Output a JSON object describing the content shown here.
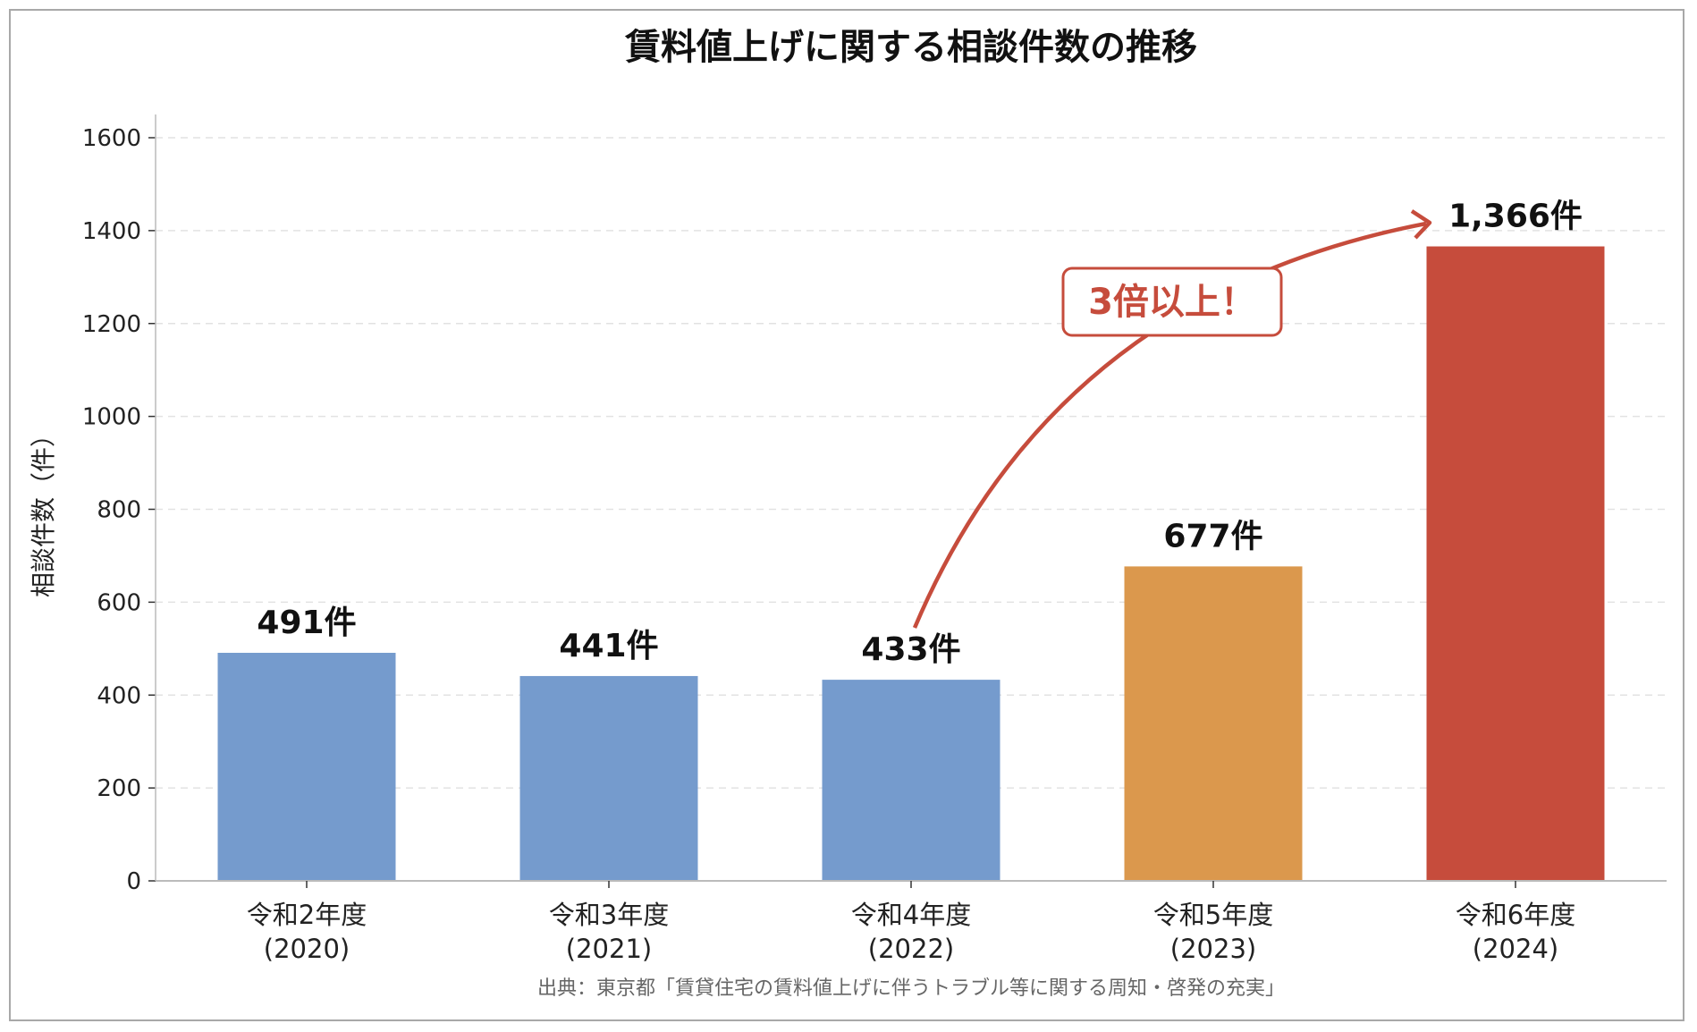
{
  "chart_data": {
    "type": "bar",
    "title": "賃料値上げに関する相談件数の推移",
    "ylabel": "相談件数（件）",
    "xlabel": "",
    "ylim": [
      0,
      1650
    ],
    "yticks": [
      0,
      200,
      400,
      600,
      800,
      1000,
      1200,
      1400,
      1600
    ],
    "grid": "horizontal dashed",
    "categories": [
      [
        "令和2年度",
        "(2020)"
      ],
      [
        "令和3年度",
        "(2021)"
      ],
      [
        "令和4年度",
        "(2022)"
      ],
      [
        "令和5年度",
        "(2023)"
      ],
      [
        "令和6年度",
        "(2024)"
      ]
    ],
    "values": [
      491,
      441,
      433,
      677,
      1366
    ],
    "data_labels": [
      "491件",
      "441件",
      "433件",
      "677件",
      "1,366件"
    ],
    "colors": [
      "#759bcd",
      "#759bcd",
      "#759bcd",
      "#db984d",
      "#c64c3c"
    ],
    "annotation": {
      "text": "3倍以上！",
      "color": "#c64c3c",
      "from_category": 2,
      "to_category": 4
    },
    "source": "出典：東京都「賃貸住宅の賃料値上げに伴うトラブル等に関する周知・啓発の充実」"
  }
}
